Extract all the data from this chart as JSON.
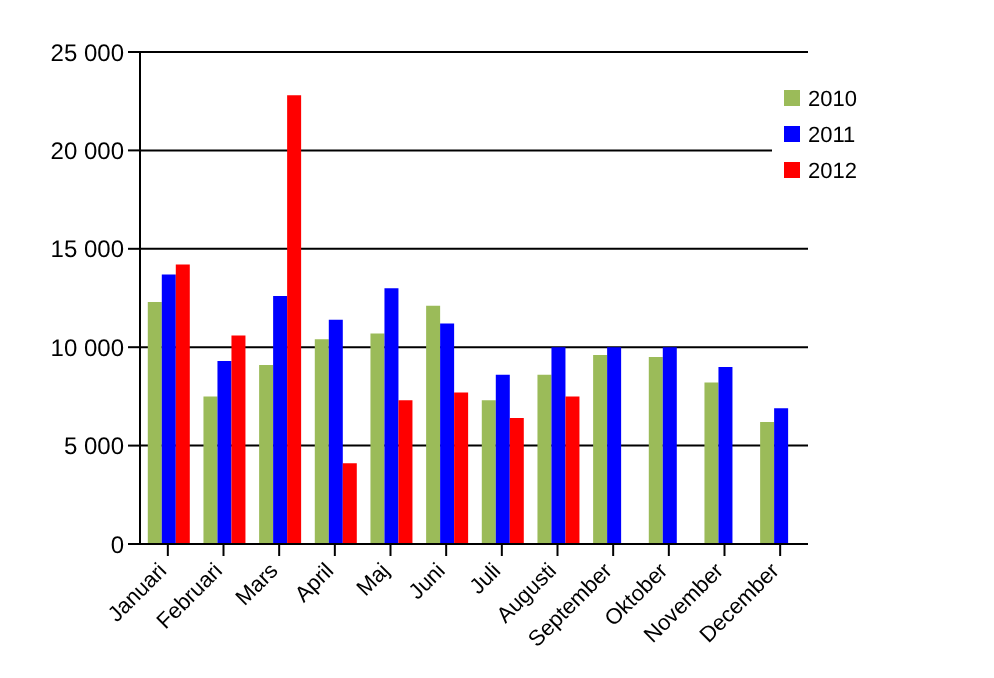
{
  "chart_data": {
    "type": "bar",
    "categories": [
      "Januari",
      "Februari",
      "Mars",
      "April",
      "Maj",
      "Juni",
      "Juli",
      "Augusti",
      "September",
      "Oktober",
      "November",
      "December"
    ],
    "series": [
      {
        "name": "2010",
        "color": "#9bbb59",
        "values": [
          12300,
          7500,
          9100,
          10400,
          10700,
          12100,
          7300,
          8600,
          9600,
          9500,
          8200,
          6200
        ]
      },
      {
        "name": "2011",
        "color": "#0000ff",
        "values": [
          13700,
          9300,
          12600,
          11400,
          13000,
          11200,
          8600,
          10000,
          10000,
          10000,
          9000,
          6900
        ]
      },
      {
        "name": "2012",
        "color": "#ff0000",
        "values": [
          14200,
          10600,
          22800,
          4100,
          7300,
          7700,
          6400,
          7500,
          null,
          null,
          null,
          null
        ]
      }
    ],
    "ylim": [
      0,
      25000
    ],
    "yticks": [
      {
        "value": 0,
        "label": "0"
      },
      {
        "value": 5000,
        "label": "5 000"
      },
      {
        "value": 10000,
        "label": "10 000"
      },
      {
        "value": 15000,
        "label": "15 000"
      },
      {
        "value": 20000,
        "label": "20 000"
      },
      {
        "value": 25000,
        "label": "25 000"
      }
    ],
    "grid": "y",
    "legend": "top right"
  }
}
